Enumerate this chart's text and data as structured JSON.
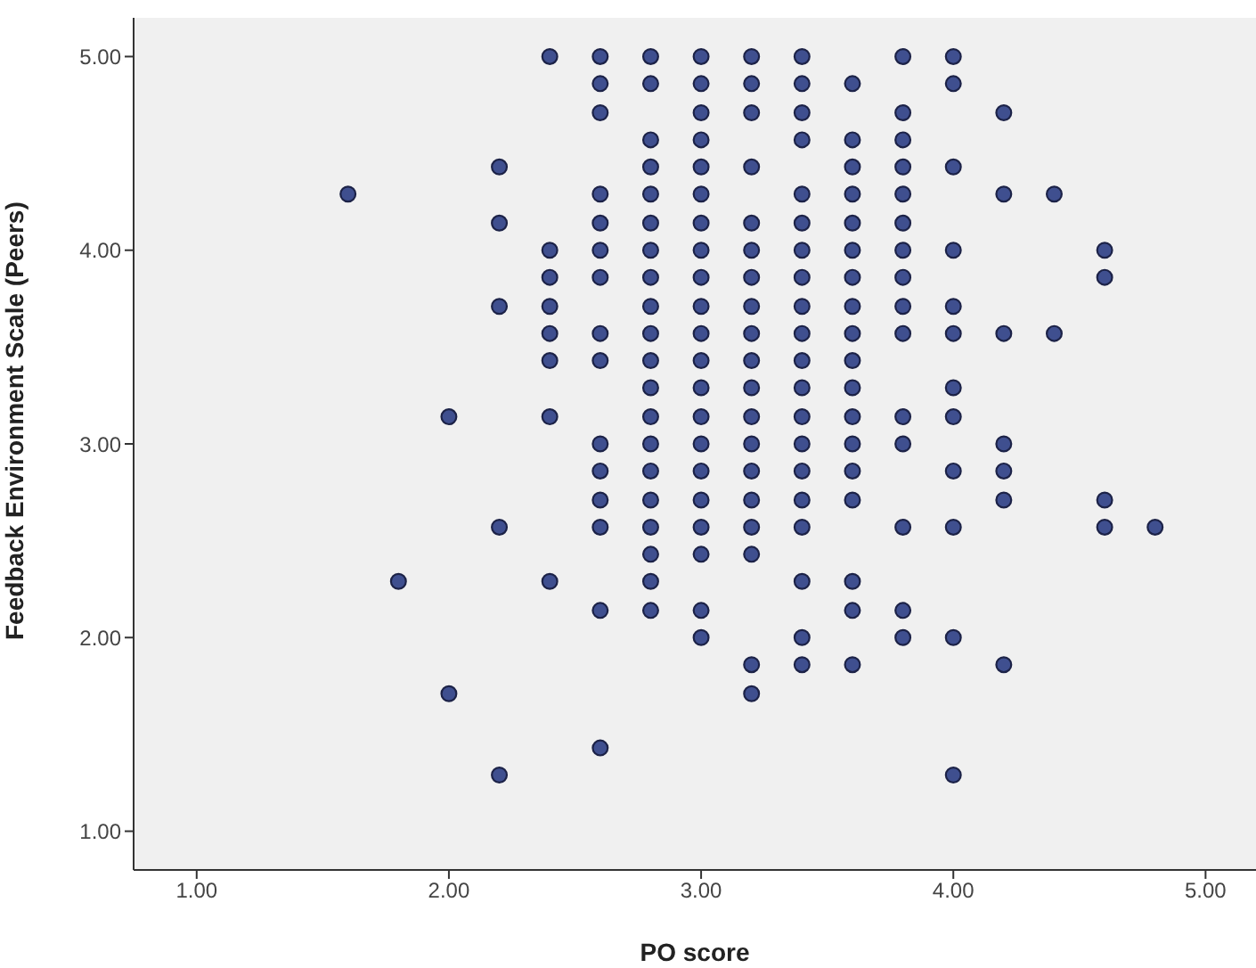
{
  "chart_data": {
    "type": "scatter",
    "xlabel": "PO score",
    "ylabel": "Feedback Environment Scale (Peers)",
    "xlim": [
      0.75,
      5.2
    ],
    "ylim": [
      0.8,
      5.2
    ],
    "xticks": [
      {
        "value": 1,
        "label": "1.00"
      },
      {
        "value": 2,
        "label": "2.00"
      },
      {
        "value": 3,
        "label": "3.00"
      },
      {
        "value": 4,
        "label": "4.00"
      },
      {
        "value": 5,
        "label": "5.00"
      }
    ],
    "yticks": [
      {
        "value": 1,
        "label": "1.00"
      },
      {
        "value": 2,
        "label": "2.00"
      },
      {
        "value": 3,
        "label": "3.00"
      },
      {
        "value": 4,
        "label": "4.00"
      },
      {
        "value": 5,
        "label": "5.00"
      }
    ],
    "grid": false,
    "marker": "circle",
    "legend": false,
    "series": [
      {
        "color": "#3f4f8f",
        "x": [
          1.6,
          1.8,
          2.0,
          2.0,
          2.2,
          2.2,
          2.2,
          2.2,
          2.2,
          2.4,
          2.4,
          2.4,
          2.4,
          2.4,
          2.4,
          2.4,
          2.4,
          2.6,
          2.6,
          2.6,
          2.6,
          2.6,
          2.6,
          2.6,
          2.6,
          2.6,
          2.6,
          2.6,
          2.6,
          2.6,
          2.6,
          2.6,
          2.8,
          2.8,
          2.8,
          2.8,
          2.8,
          2.8,
          2.8,
          2.8,
          2.8,
          2.8,
          2.8,
          2.8,
          2.8,
          2.8,
          2.8,
          2.8,
          2.8,
          2.8,
          2.8,
          2.8,
          3.0,
          3.0,
          3.0,
          3.0,
          3.0,
          3.0,
          3.0,
          3.0,
          3.0,
          3.0,
          3.0,
          3.0,
          3.0,
          3.0,
          3.0,
          3.0,
          3.0,
          3.0,
          3.0,
          3.0,
          3.0,
          3.2,
          3.2,
          3.2,
          3.2,
          3.2,
          3.2,
          3.2,
          3.2,
          3.2,
          3.2,
          3.2,
          3.2,
          3.2,
          3.2,
          3.2,
          3.2,
          3.2,
          3.2,
          3.2,
          3.4,
          3.4,
          3.4,
          3.4,
          3.4,
          3.4,
          3.4,
          3.4,
          3.4,
          3.4,
          3.4,
          3.4,
          3.4,
          3.4,
          3.4,
          3.4,
          3.4,
          3.4,
          3.4,
          3.4,
          3.6,
          3.6,
          3.6,
          3.6,
          3.6,
          3.6,
          3.6,
          3.6,
          3.6,
          3.6,
          3.6,
          3.6,
          3.6,
          3.6,
          3.6,
          3.6,
          3.6,
          3.6,
          3.8,
          3.8,
          3.8,
          3.8,
          3.8,
          3.8,
          3.8,
          3.8,
          3.8,
          3.8,
          3.8,
          3.8,
          3.8,
          3.8,
          3.8,
          4.0,
          4.0,
          4.0,
          4.0,
          4.0,
          4.0,
          4.0,
          4.0,
          4.0,
          4.0,
          4.0,
          4.0,
          4.2,
          4.2,
          4.2,
          4.2,
          4.2,
          4.2,
          4.2,
          4.4,
          4.4,
          4.6,
          4.6,
          4.6,
          4.6,
          4.8
        ],
        "values": [
          4.29,
          2.29,
          3.14,
          1.71,
          4.43,
          4.14,
          3.71,
          2.57,
          1.29,
          5.0,
          4.0,
          3.86,
          3.71,
          3.57,
          3.43,
          3.14,
          2.29,
          5.0,
          4.86,
          4.71,
          4.29,
          4.14,
          4.0,
          3.86,
          3.57,
          3.43,
          3.0,
          2.86,
          2.71,
          2.57,
          2.14,
          1.43,
          5.0,
          4.86,
          4.57,
          4.43,
          4.29,
          4.14,
          4.0,
          3.86,
          3.71,
          3.57,
          3.43,
          3.29,
          3.14,
          3.0,
          2.86,
          2.71,
          2.57,
          2.43,
          2.29,
          2.14,
          5.0,
          4.86,
          4.71,
          4.57,
          4.43,
          4.29,
          4.14,
          4.0,
          3.86,
          3.71,
          3.57,
          3.43,
          3.29,
          3.14,
          3.0,
          2.86,
          2.71,
          2.57,
          2.43,
          2.14,
          2.0,
          5.0,
          4.86,
          4.71,
          4.43,
          4.14,
          4.0,
          3.86,
          3.71,
          3.57,
          3.43,
          3.29,
          3.14,
          3.0,
          2.86,
          2.71,
          2.57,
          2.43,
          1.86,
          1.71,
          5.0,
          4.86,
          4.71,
          4.57,
          4.29,
          4.14,
          4.0,
          3.86,
          3.71,
          3.57,
          3.43,
          3.29,
          3.14,
          3.0,
          2.86,
          2.71,
          2.57,
          2.29,
          2.0,
          1.86,
          4.86,
          4.57,
          4.43,
          4.29,
          4.14,
          4.0,
          3.86,
          3.71,
          3.57,
          3.43,
          3.29,
          3.14,
          3.0,
          2.86,
          2.71,
          2.29,
          2.14,
          1.86,
          5.0,
          4.71,
          4.57,
          4.43,
          4.29,
          4.14,
          4.0,
          3.86,
          3.71,
          3.57,
          3.14,
          3.0,
          2.57,
          2.14,
          2.0,
          5.0,
          4.86,
          4.43,
          4.0,
          3.71,
          3.57,
          3.29,
          3.14,
          2.86,
          2.57,
          2.0,
          1.29,
          4.71,
          4.29,
          3.57,
          3.0,
          2.86,
          2.71,
          1.86,
          4.29,
          3.57,
          4.0,
          3.86,
          2.71,
          2.57,
          2.57
        ]
      }
    ]
  }
}
